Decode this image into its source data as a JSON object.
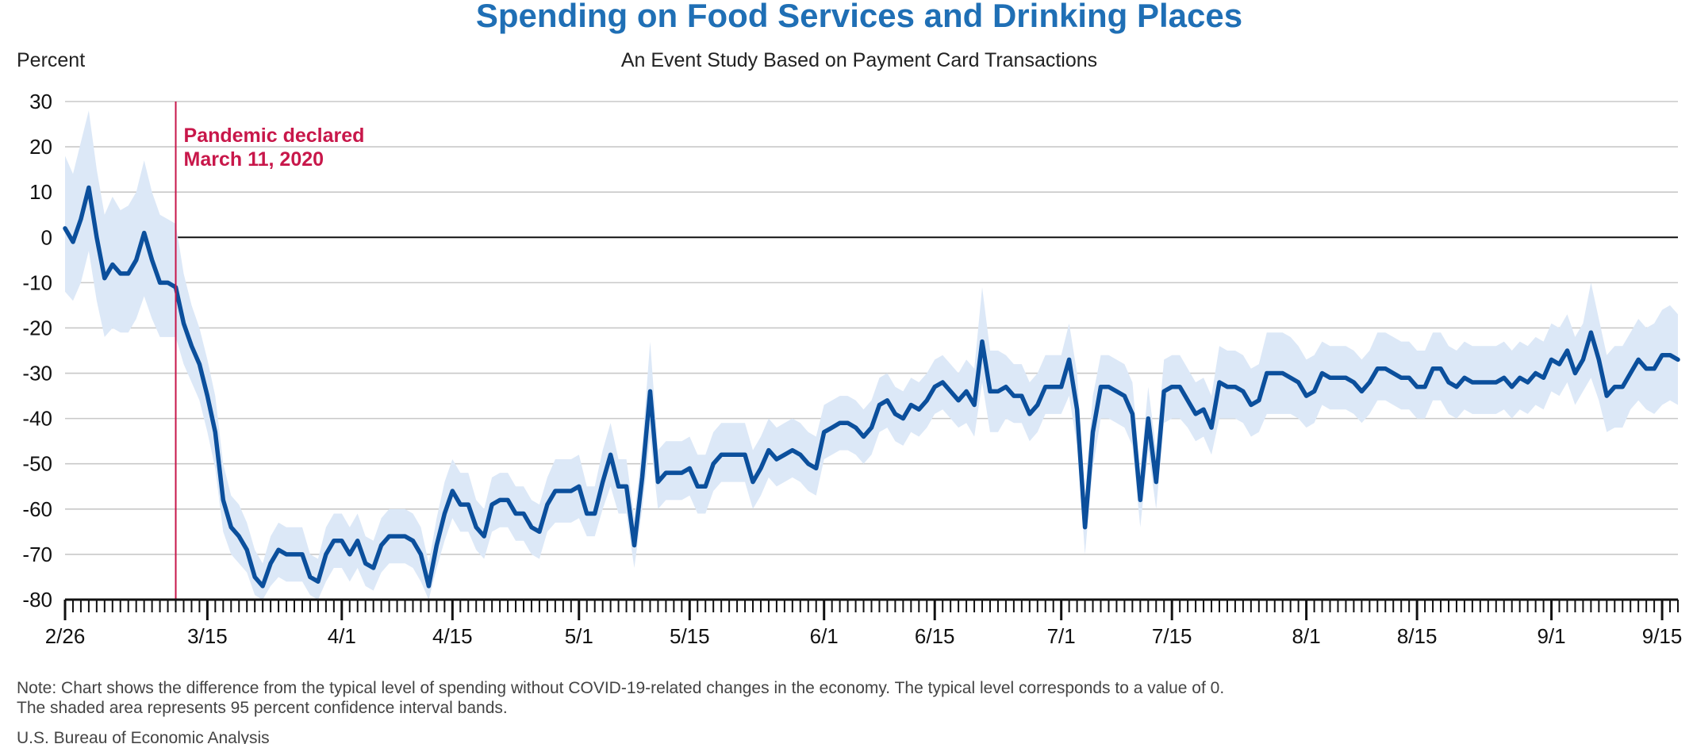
{
  "colors": {
    "title": "#1f6fb5",
    "series": "#0b4f9c",
    "band": "#dce8f7",
    "event": "#c8174a",
    "grid": "#c8c8c8",
    "zero": "#111111"
  },
  "notes": {
    "line1": "Note: Chart shows the difference from the typical level of spending without COVID-19-related changes in the economy. The typical level corresponds to a value of 0.",
    "line2": "The shaded area represents 95 percent confidence interval bands.",
    "source": "U.S. Bureau of Economic Analysis"
  },
  "chart_data": {
    "type": "line",
    "title": "Spending on Food Services and Drinking Places",
    "subtitle": "An Event Study Based on Payment Card Transactions",
    "ylabel": "Percent",
    "xlabel": "",
    "ylim": [
      -80,
      30
    ],
    "yticks": [
      30,
      20,
      10,
      0,
      -10,
      -20,
      -30,
      -40,
      -50,
      -60,
      -70,
      -80
    ],
    "grid": true,
    "x_start_date": "2020-02-26",
    "x_end_date": "2020-09-17",
    "xtick_labels": [
      {
        "date": "2020-02-26",
        "label": "2/26"
      },
      {
        "date": "2020-03-15",
        "label": "3/15"
      },
      {
        "date": "2020-04-01",
        "label": "4/1"
      },
      {
        "date": "2020-04-15",
        "label": "4/15"
      },
      {
        "date": "2020-05-01",
        "label": "5/1"
      },
      {
        "date": "2020-05-15",
        "label": "5/15"
      },
      {
        "date": "2020-06-01",
        "label": "6/1"
      },
      {
        "date": "2020-06-15",
        "label": "6/15"
      },
      {
        "date": "2020-07-01",
        "label": "7/1"
      },
      {
        "date": "2020-07-15",
        "label": "7/15"
      },
      {
        "date": "2020-08-01",
        "label": "8/1"
      },
      {
        "date": "2020-08-15",
        "label": "8/15"
      },
      {
        "date": "2020-09-01",
        "label": "9/1"
      },
      {
        "date": "2020-09-15",
        "label": "9/15"
      }
    ],
    "event": {
      "date": "2020-03-11",
      "label_line1": "Pandemic declared",
      "label_line2": "March 11, 2020"
    },
    "series": [
      {
        "values": [
          2,
          -1,
          4,
          11,
          0,
          -9,
          -6,
          -8,
          -8,
          -5,
          1,
          -5,
          -10,
          -10,
          -11,
          -19,
          -24,
          -28,
          -35,
          -43,
          -58,
          -64,
          -66,
          -69,
          -75,
          -77,
          -72,
          -69,
          -70,
          -70,
          -70,
          -75,
          -76,
          -70,
          -67,
          -67,
          -70,
          -67,
          -72,
          -73,
          -68,
          -66,
          -66,
          -66,
          -67,
          -70,
          -77,
          -68,
          -61,
          -56,
          -59,
          -59,
          -64,
          -66,
          -59,
          -58,
          -58,
          -61,
          -61,
          -64,
          -65,
          -59,
          -56,
          -56,
          -56,
          -55,
          -61,
          -61,
          -54,
          -48,
          -55,
          -55,
          -68,
          -53,
          -34,
          -54,
          -52,
          -52,
          -52,
          -51,
          -55,
          -55,
          -50,
          -48,
          -48,
          -48,
          -48,
          -54,
          -51,
          -47,
          -49,
          -48,
          -47,
          -48,
          -50,
          -51,
          -43,
          -42,
          -41,
          -41,
          -42,
          -44,
          -42,
          -37,
          -36,
          -39,
          -40,
          -37,
          -38,
          -36,
          -33,
          -32,
          -34,
          -36,
          -34,
          -37,
          -23,
          -34,
          -34,
          -33,
          -35,
          -35,
          -39,
          -37,
          -33,
          -33,
          -33,
          -27,
          -38,
          -64,
          -43,
          -33,
          -33,
          -34,
          -35,
          -39,
          -58,
          -40,
          -54,
          -34,
          -33,
          -33,
          -36,
          -39,
          -38,
          -42,
          -32,
          -33,
          -33,
          -34,
          -37,
          -36,
          -30,
          -30,
          -30,
          -31,
          -32,
          -35,
          -34,
          -30,
          -31,
          -31,
          -31,
          -32,
          -34,
          -32,
          -29,
          -29,
          -30,
          -31,
          -31,
          -33,
          -33,
          -29,
          -29,
          -32,
          -33,
          -31,
          -32,
          -32,
          -32,
          -32,
          -31,
          -33,
          -31,
          -32,
          -30,
          -31,
          -27,
          -28,
          -25,
          -30,
          -27,
          -21,
          -27,
          -35,
          -33,
          -33,
          -30,
          -27,
          -29,
          -29,
          -26,
          -26,
          -27
        ],
        "ci_lower": [
          -12,
          -14,
          -10,
          -3,
          -14,
          -22,
          -20,
          -21,
          -21,
          -18,
          -13,
          -18,
          -22,
          -22,
          -22,
          -28,
          -32,
          -36,
          -43,
          -51,
          -65,
          -70,
          -72,
          -74,
          -79,
          -80,
          -77,
          -75,
          -76,
          -76,
          -76,
          -79,
          -80,
          -76,
          -73,
          -73,
          -76,
          -73,
          -77,
          -78,
          -74,
          -72,
          -72,
          -72,
          -73,
          -76,
          -80,
          -73,
          -67,
          -62,
          -65,
          -65,
          -69,
          -71,
          -65,
          -64,
          -64,
          -67,
          -67,
          -70,
          -71,
          -65,
          -63,
          -63,
          -63,
          -62,
          -66,
          -66,
          -60,
          -55,
          -61,
          -61,
          -73,
          -60,
          -44,
          -60,
          -58,
          -58,
          -58,
          -57,
          -61,
          -61,
          -56,
          -54,
          -54,
          -54,
          -54,
          -60,
          -57,
          -53,
          -55,
          -54,
          -53,
          -54,
          -56,
          -57,
          -49,
          -48,
          -47,
          -47,
          -48,
          -50,
          -48,
          -43,
          -42,
          -45,
          -46,
          -43,
          -44,
          -42,
          -39,
          -38,
          -40,
          -42,
          -41,
          -44,
          -32,
          -43,
          -43,
          -40,
          -41,
          -41,
          -45,
          -43,
          -39,
          -39,
          -39,
          -35,
          -46,
          -70,
          -51,
          -40,
          -40,
          -41,
          -42,
          -46,
          -64,
          -47,
          -60,
          -41,
          -40,
          -40,
          -42,
          -45,
          -44,
          -48,
          -40,
          -40,
          -40,
          -41,
          -44,
          -43,
          -39,
          -39,
          -39,
          -39,
          -40,
          -42,
          -41,
          -37,
          -38,
          -38,
          -38,
          -39,
          -41,
          -39,
          -36,
          -36,
          -37,
          -38,
          -38,
          -40,
          -40,
          -36,
          -36,
          -39,
          -40,
          -38,
          -39,
          -39,
          -39,
          -39,
          -38,
          -40,
          -38,
          -39,
          -37,
          -38,
          -34,
          -35,
          -32,
          -37,
          -34,
          -31,
          -36,
          -43,
          -42,
          -42,
          -38,
          -36,
          -38,
          -39,
          -37,
          -36,
          -37
        ],
        "ci_upper": [
          18,
          14,
          21,
          28,
          15,
          5,
          9,
          6,
          7,
          10,
          17,
          10,
          5,
          4,
          3,
          -8,
          -15,
          -20,
          -27,
          -35,
          -50,
          -57,
          -59,
          -63,
          -69,
          -72,
          -66,
          -63,
          -64,
          -64,
          -64,
          -70,
          -71,
          -64,
          -61,
          -61,
          -64,
          -61,
          -66,
          -67,
          -62,
          -60,
          -60,
          -60,
          -61,
          -64,
          -72,
          -62,
          -54,
          -49,
          -52,
          -52,
          -58,
          -60,
          -53,
          -52,
          -52,
          -55,
          -55,
          -58,
          -59,
          -53,
          -49,
          -49,
          -49,
          -48,
          -55,
          -55,
          -47,
          -41,
          -49,
          -49,
          -62,
          -46,
          -23,
          -47,
          -45,
          -45,
          -45,
          -44,
          -48,
          -48,
          -43,
          -41,
          -41,
          -41,
          -41,
          -47,
          -44,
          -40,
          -42,
          -41,
          -40,
          -41,
          -43,
          -44,
          -37,
          -36,
          -35,
          -35,
          -36,
          -38,
          -36,
          -31,
          -30,
          -33,
          -34,
          -31,
          -32,
          -30,
          -27,
          -26,
          -28,
          -30,
          -27,
          -29,
          -11,
          -25,
          -25,
          -26,
          -28,
          -28,
          -32,
          -30,
          -26,
          -26,
          -26,
          -19,
          -30,
          -57,
          -35,
          -26,
          -26,
          -27,
          -28,
          -32,
          -52,
          -33,
          -47,
          -27,
          -26,
          -26,
          -29,
          -32,
          -31,
          -35,
          -24,
          -25,
          -25,
          -26,
          -29,
          -28,
          -21,
          -21,
          -21,
          -22,
          -24,
          -27,
          -26,
          -23,
          -24,
          -24,
          -24,
          -25,
          -27,
          -25,
          -21,
          -21,
          -22,
          -23,
          -23,
          -25,
          -25,
          -21,
          -21,
          -24,
          -25,
          -23,
          -24,
          -24,
          -24,
          -24,
          -23,
          -25,
          -23,
          -24,
          -22,
          -23,
          -19,
          -20,
          -17,
          -22,
          -19,
          -10,
          -18,
          -26,
          -24,
          -24,
          -21,
          -18,
          -20,
          -19,
          -16,
          -15,
          -17
        ]
      }
    ]
  }
}
